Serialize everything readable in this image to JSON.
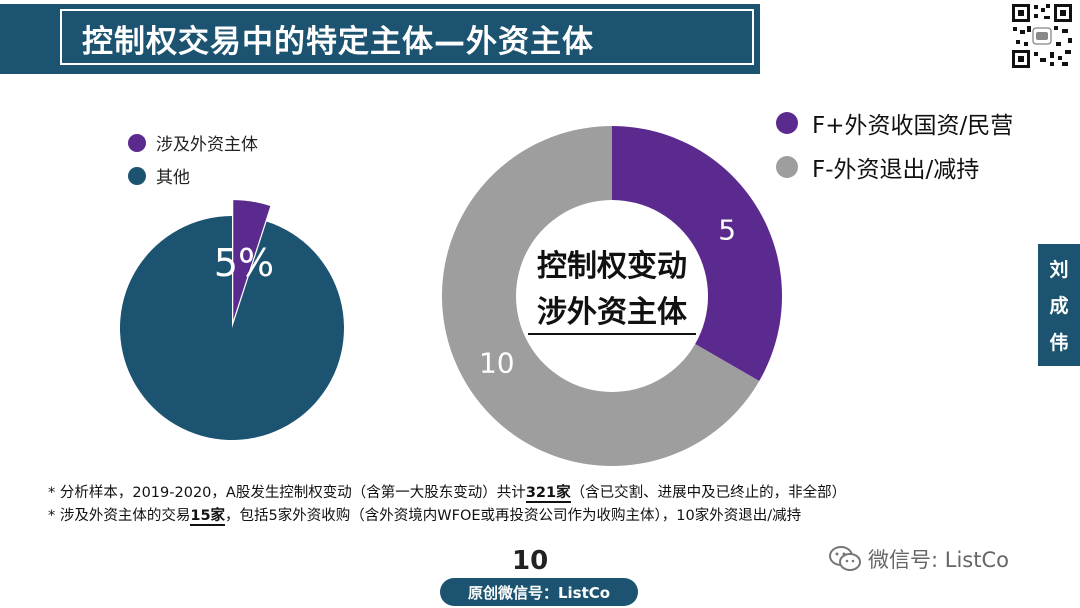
{
  "title": "控制权交易中的特定主体—外资主体",
  "side_tag": [
    "刘",
    "成",
    "伟"
  ],
  "chart_data": [
    {
      "type": "pie",
      "legend": "top-left",
      "categories": [
        "涉及外资主体",
        "其他"
      ],
      "values": [
        5,
        95
      ],
      "labels": [
        "5%",
        ""
      ],
      "colors": [
        "#5b2a8e",
        "#1c5370"
      ]
    },
    {
      "type": "pie",
      "donut": true,
      "legend": "top-right",
      "center_text": [
        "控制权变动",
        "涉外资主体"
      ],
      "categories": [
        "F+外资收国资/民营",
        "F-外资退出/减持"
      ],
      "values": [
        5,
        10
      ],
      "labels": [
        "5",
        "10"
      ],
      "colors": [
        "#5b2a8e",
        "#9e9e9e"
      ]
    }
  ],
  "notes": [
    {
      "prefix": "*  分析样本，2019-2020，A股发生控制权变动（含第一大股东变动）共计",
      "bold": "321家",
      "suffix": "（含已交割、进展中及已终止的，非全部）"
    },
    {
      "prefix": "*  涉及外资主体的交易",
      "bold": "15家",
      "suffix": "，包括5家外资收购（含外资境内WFOE或再投资公司作为收购主体），10家外资退出/减持"
    }
  ],
  "page_number": "10",
  "watermark": "微信号: ListCo",
  "footer": "原创微信号：ListCo"
}
